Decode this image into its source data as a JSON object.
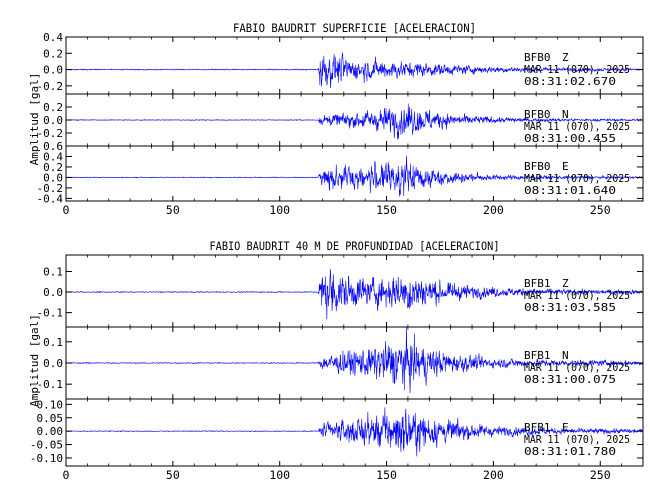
{
  "colors": {
    "trace": "#0000ff",
    "axis": "#000000",
    "background": "#ffffff"
  },
  "chart_data": [
    {
      "type": "line",
      "title": "FABIO BAUDRIT SUPERFICIE [ACELERACION]",
      "ylabel": "Amplitud [gal]",
      "xlim": [
        0,
        270
      ],
      "xticks": [
        0,
        50,
        100,
        150,
        200,
        250
      ],
      "xticklabels": [
        "0",
        "50",
        "100",
        "150",
        "200",
        "250"
      ],
      "grid": false,
      "panels": [
        {
          "station": "BFB0",
          "component": "Z",
          "date": "MAR 11 (070), 2025",
          "time": "08:31:02.670",
          "ylim": [
            -0.3,
            0.4
          ],
          "yticks": [
            0.4,
            0.2,
            0.0,
            -0.2
          ],
          "yticklabels": [
            "0.4",
            "0.2",
            "0.0",
            "-0.2"
          ],
          "noise": 0.008,
          "onset": 119,
          "envelope": [
            [
              0,
              0.008
            ],
            [
              118,
              0.008
            ],
            [
              119,
              0.33
            ],
            [
              123,
              0.26
            ],
            [
              135,
              0.16
            ],
            [
              150,
              0.15
            ],
            [
              160,
              0.13
            ],
            [
              180,
              0.08
            ],
            [
              200,
              0.05
            ],
            [
              230,
              0.03
            ],
            [
              270,
              0.02
            ]
          ]
        },
        {
          "station": "BFB0",
          "component": "N",
          "date": "MAR 11 (070), 2025",
          "time": "08:31:00.455",
          "ylim": [
            -0.4,
            0.4
          ],
          "yticks": [
            0.2,
            0.0,
            -0.2
          ],
          "yticklabels": [
            "0.2",
            "0.0",
            "-0.2"
          ],
          "noise": 0.008,
          "onset": 119,
          "envelope": [
            [
              0,
              0.008
            ],
            [
              118,
              0.008
            ],
            [
              119,
              0.1
            ],
            [
              130,
              0.13
            ],
            [
              145,
              0.2
            ],
            [
              158,
              0.32
            ],
            [
              162,
              0.28
            ],
            [
              180,
              0.12
            ],
            [
              200,
              0.06
            ],
            [
              230,
              0.03
            ],
            [
              270,
              0.02
            ]
          ]
        },
        {
          "station": "BFB0",
          "component": "E",
          "date": "MAR 11 (070), 2025",
          "time": "08:31:01.640",
          "ylim": [
            -0.45,
            0.6
          ],
          "yticks": [
            0.6,
            0.4,
            0.2,
            0.0,
            -0.2,
            -0.4
          ],
          "yticklabels": [
            "0.6",
            "0.4",
            "0.2",
            "0.0",
            "-0.2",
            "-0.4"
          ],
          "noise": 0.01,
          "onset": 119,
          "envelope": [
            [
              0,
              0.01
            ],
            [
              118,
              0.01
            ],
            [
              119,
              0.2
            ],
            [
              125,
              0.3
            ],
            [
              140,
              0.28
            ],
            [
              158,
              0.42
            ],
            [
              162,
              0.36
            ],
            [
              180,
              0.14
            ],
            [
              200,
              0.07
            ],
            [
              230,
              0.04
            ],
            [
              270,
              0.025
            ]
          ]
        }
      ]
    },
    {
      "type": "line",
      "title": "FABIO BAUDRIT 40 M DE PROFUNDIDAD [ACELERACION]",
      "ylabel": "Amplitud [gal]",
      "xlim": [
        0,
        270
      ],
      "xticks": [
        0,
        50,
        100,
        150,
        200,
        250
      ],
      "xticklabels": [
        "0",
        "50",
        "100",
        "150",
        "200",
        "250"
      ],
      "grid": false,
      "panels": [
        {
          "station": "BFB1",
          "component": "Z",
          "date": "MAR 11 (070), 2025",
          "time": "08:31:03.585",
          "ylim": [
            -0.17,
            0.18
          ],
          "yticks": [
            0.1,
            0.0,
            -0.1
          ],
          "yticklabels": [
            "0.1",
            "0.0",
            "-0.1"
          ],
          "noise": 0.003,
          "onset": 119,
          "envelope": [
            [
              0,
              0.003
            ],
            [
              118,
              0.003
            ],
            [
              119,
              0.12
            ],
            [
              123,
              0.16
            ],
            [
              135,
              0.09
            ],
            [
              155,
              0.1
            ],
            [
              160,
              0.13
            ],
            [
              175,
              0.06
            ],
            [
              200,
              0.03
            ],
            [
              230,
              0.018
            ],
            [
              270,
              0.012
            ]
          ]
        },
        {
          "station": "BFB1",
          "component": "N",
          "date": "MAR 11 (070), 2025",
          "time": "08:31:00.075",
          "ylim": [
            -0.17,
            0.17
          ],
          "yticks": [
            0.1,
            0.0,
            -0.1
          ],
          "yticklabels": [
            "0.1",
            "0.0",
            "-0.1"
          ],
          "noise": 0.003,
          "onset": 119,
          "envelope": [
            [
              0,
              0.003
            ],
            [
              118,
              0.003
            ],
            [
              119,
              0.04
            ],
            [
              130,
              0.07
            ],
            [
              145,
              0.1
            ],
            [
              158,
              0.16
            ],
            [
              165,
              0.12
            ],
            [
              180,
              0.06
            ],
            [
              200,
              0.03
            ],
            [
              230,
              0.02
            ],
            [
              270,
              0.015
            ]
          ]
        },
        {
          "station": "BFB1",
          "component": "E",
          "date": "MAR 11 (070), 2025",
          "time": "08:31:01.780",
          "ylim": [
            -0.13,
            0.12
          ],
          "yticks": [
            0.1,
            0.05,
            0.0,
            -0.05,
            -0.1
          ],
          "yticklabels": [
            "0.10",
            "0.05",
            "0.00",
            "-0.05",
            "-0.10"
          ],
          "noise": 0.002,
          "onset": 119,
          "envelope": [
            [
              0,
              0.002
            ],
            [
              118,
              0.002
            ],
            [
              119,
              0.035
            ],
            [
              130,
              0.05
            ],
            [
              145,
              0.08
            ],
            [
              155,
              0.11
            ],
            [
              165,
              0.09
            ],
            [
              180,
              0.05
            ],
            [
              200,
              0.025
            ],
            [
              230,
              0.015
            ],
            [
              270,
              0.01
            ]
          ]
        }
      ]
    }
  ]
}
